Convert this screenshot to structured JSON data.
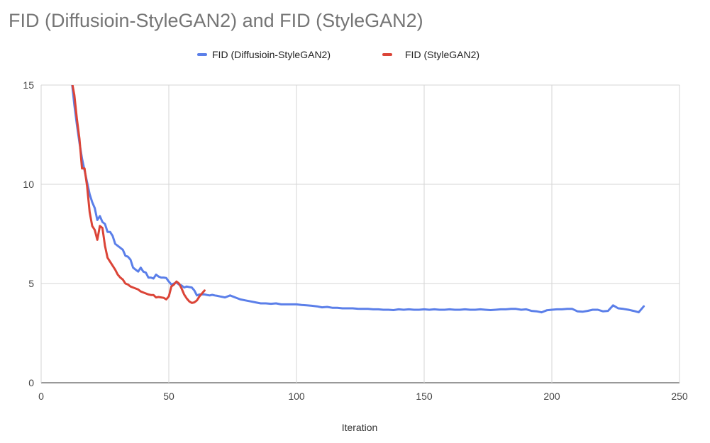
{
  "chart_data": {
    "type": "line",
    "title": "FID (Diffusioin-StyleGAN2) and FID (StyleGAN2)",
    "xlabel": "Iteration",
    "ylabel": "",
    "xlim": [
      0,
      250
    ],
    "ylim": [
      0,
      15
    ],
    "xticks": [
      0,
      50,
      100,
      150,
      200,
      250
    ],
    "yticks": [
      0,
      5,
      10,
      15
    ],
    "grid": true,
    "legend_position": "top-center",
    "series": [
      {
        "name": "FID (Diffusioin-StyleGAN2)",
        "color": "#5b7fe9",
        "x": [
          12,
          13,
          14,
          15,
          16,
          17,
          18,
          19,
          20,
          21,
          22,
          23,
          24,
          25,
          26,
          27,
          28,
          29,
          30,
          31,
          32,
          33,
          34,
          35,
          36,
          37,
          38,
          39,
          40,
          41,
          42,
          43,
          44,
          45,
          46,
          47,
          48,
          49,
          50,
          51,
          52,
          53,
          54,
          55,
          56,
          57,
          58,
          59,
          60,
          61,
          62,
          63,
          64,
          65,
          66,
          67,
          68,
          69,
          70,
          72,
          74,
          76,
          78,
          80,
          82,
          84,
          86,
          88,
          90,
          92,
          94,
          96,
          98,
          100,
          102,
          104,
          106,
          108,
          110,
          112,
          114,
          116,
          118,
          120,
          122,
          124,
          126,
          128,
          130,
          132,
          134,
          136,
          138,
          140,
          142,
          144,
          146,
          148,
          150,
          152,
          154,
          156,
          158,
          160,
          162,
          164,
          166,
          168,
          170,
          172,
          174,
          176,
          178,
          180,
          182,
          184,
          186,
          188,
          190,
          192,
          194,
          196,
          198,
          200,
          202,
          204,
          206,
          208,
          210,
          212,
          214,
          216,
          218,
          220,
          222,
          224,
          226,
          228,
          230,
          232,
          234,
          236
        ],
        "y": [
          15.2,
          14.0,
          13.0,
          12.1,
          11.3,
          10.7,
          10.1,
          9.5,
          9.1,
          8.8,
          8.2,
          8.4,
          8.1,
          8.0,
          7.6,
          7.6,
          7.4,
          7.0,
          6.9,
          6.8,
          6.7,
          6.4,
          6.35,
          6.2,
          5.8,
          5.7,
          5.6,
          5.8,
          5.6,
          5.55,
          5.3,
          5.3,
          5.25,
          5.45,
          5.35,
          5.3,
          5.3,
          5.28,
          5.1,
          4.95,
          5.0,
          5.05,
          4.95,
          4.9,
          4.8,
          4.85,
          4.82,
          4.8,
          4.65,
          4.4,
          4.45,
          4.45,
          4.45,
          4.42,
          4.4,
          4.43,
          4.4,
          4.38,
          4.35,
          4.3,
          4.4,
          4.3,
          4.2,
          4.15,
          4.1,
          4.05,
          4.0,
          4.0,
          3.98,
          4.0,
          3.95,
          3.95,
          3.95,
          3.95,
          3.92,
          3.9,
          3.88,
          3.85,
          3.8,
          3.82,
          3.78,
          3.78,
          3.75,
          3.75,
          3.75,
          3.73,
          3.72,
          3.72,
          3.7,
          3.7,
          3.68,
          3.68,
          3.66,
          3.7,
          3.68,
          3.7,
          3.68,
          3.68,
          3.7,
          3.68,
          3.7,
          3.68,
          3.68,
          3.7,
          3.68,
          3.68,
          3.7,
          3.68,
          3.68,
          3.7,
          3.68,
          3.66,
          3.68,
          3.7,
          3.7,
          3.72,
          3.72,
          3.68,
          3.7,
          3.62,
          3.6,
          3.55,
          3.65,
          3.68,
          3.7,
          3.7,
          3.72,
          3.72,
          3.6,
          3.58,
          3.62,
          3.68,
          3.68,
          3.6,
          3.62,
          3.9,
          3.75,
          3.72,
          3.68,
          3.62,
          3.55,
          3.85
        ]
      },
      {
        "name": "FID (StyleGAN2)",
        "color": "#db4437",
        "x": [
          12,
          13,
          14,
          15,
          16,
          17,
          18,
          19,
          20,
          21,
          22,
          23,
          24,
          25,
          26,
          27,
          28,
          29,
          30,
          31,
          32,
          33,
          34,
          35,
          36,
          37,
          38,
          39,
          40,
          41,
          42,
          43,
          44,
          45,
          46,
          47,
          48,
          49,
          50,
          51,
          52,
          53,
          54,
          55,
          56,
          57,
          58,
          59,
          60,
          61,
          62,
          63,
          64
        ],
        "y": [
          15.2,
          14.5,
          13.3,
          12.3,
          10.8,
          10.8,
          9.9,
          8.6,
          7.9,
          7.7,
          7.2,
          7.9,
          7.8,
          6.9,
          6.3,
          6.1,
          5.9,
          5.7,
          5.45,
          5.3,
          5.2,
          5.0,
          4.95,
          4.85,
          4.8,
          4.75,
          4.7,
          4.6,
          4.55,
          4.5,
          4.45,
          4.42,
          4.42,
          4.3,
          4.32,
          4.3,
          4.28,
          4.2,
          4.35,
          4.85,
          4.95,
          5.1,
          5.0,
          4.75,
          4.45,
          4.25,
          4.1,
          4.02,
          4.05,
          4.15,
          4.35,
          4.5,
          4.65
        ]
      }
    ]
  }
}
